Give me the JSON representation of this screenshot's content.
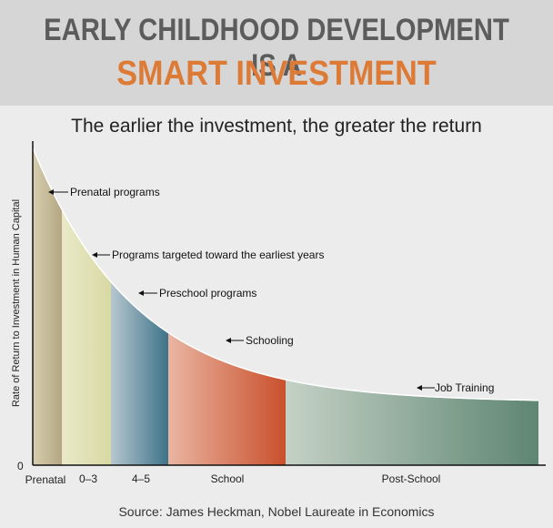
{
  "header": {
    "line1": "EARLY CHILDHOOD DEVELOPMENT IS A",
    "line2": "SMART INVESTMENT"
  },
  "subtitle": "The earlier the investment, the greater the return",
  "source": "Source: James Heckman, Nobel Laureate in Economics",
  "colors": {
    "title_gray": "#5c5c5c",
    "title_orange": "#dc7a36",
    "prenatal": "#cbbf9a",
    "early": "#dfe0b2",
    "preschool": "#4a7f93",
    "school": "#c9502c",
    "postschool": "#6d907d"
  },
  "chart_data": {
    "type": "area",
    "ylabel": "Rate of Return to Investment in Human Capital",
    "y_tick": "0",
    "x_tick_labels": [
      "Prenatal",
      "0–3",
      "4–5",
      "School",
      "Post-School"
    ],
    "segments": [
      {
        "name": "Prenatal",
        "label": "Prenatal programs"
      },
      {
        "name": "0–3",
        "label": "Programs targeted toward the earliest years"
      },
      {
        "name": "4–5",
        "label": "Preschool programs"
      },
      {
        "name": "School",
        "label": "Schooling"
      },
      {
        "name": "Post-School",
        "label": "Job Training"
      }
    ],
    "trend": "decreasing"
  }
}
